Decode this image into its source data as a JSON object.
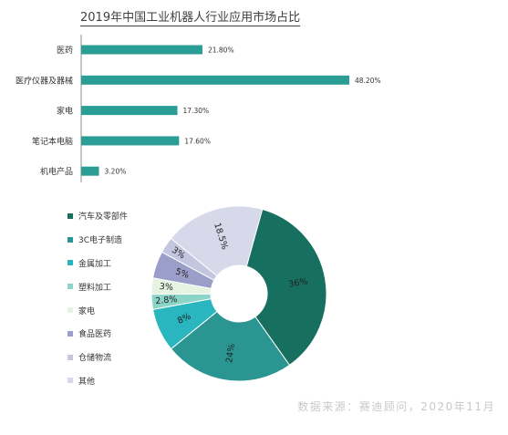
{
  "bar_title": "2019年中国工业机器人行业应用市场占比",
  "source": "数据来源：赛迪顾问，2020年11月",
  "colors": {
    "bar": "#2a9d95",
    "pie": [
      "#17705f",
      "#2a9591",
      "#2ab6be",
      "#8ad4c8",
      "#e6f3e1",
      "#9b9ec9",
      "#c4c6e0",
      "#d7d8ea"
    ]
  },
  "chart_data": [
    {
      "type": "bar",
      "orientation": "horizontal",
      "title": "2019年中国工业机器人行业应用市场占比",
      "categories": [
        "医药",
        "医疗仪器及器械",
        "家电",
        "笔记本电脑",
        "机电产品"
      ],
      "values": [
        21.8,
        48.2,
        17.3,
        17.6,
        3.2
      ],
      "value_labels": [
        "21.80%",
        "48.20%",
        "17.30%",
        "17.60%",
        "3.20%"
      ],
      "xlim": [
        0,
        50
      ],
      "grid": false
    },
    {
      "type": "pie",
      "style": "donut",
      "labels": [
        "汽车及零部件",
        "3C电子制造",
        "金属加工",
        "塑料加工",
        "家电",
        "食品医药",
        "仓储物流",
        "其他"
      ],
      "values": [
        36,
        24,
        8,
        2.8,
        3,
        5,
        3,
        18.5
      ],
      "value_labels": [
        "36%",
        "24%",
        "8%",
        "2.8%",
        "3%",
        "5%",
        "3%",
        "18.5%"
      ],
      "legend_position": "left"
    }
  ]
}
